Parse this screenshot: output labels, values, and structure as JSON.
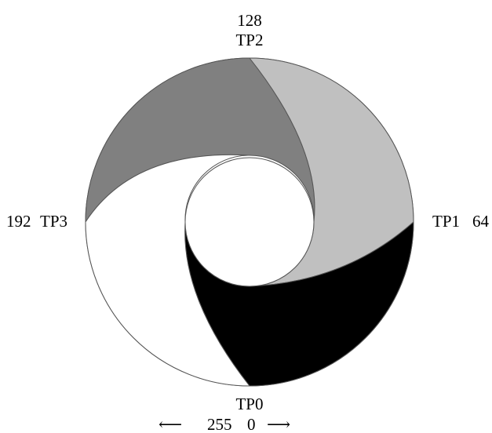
{
  "diagram": {
    "segments": [
      {
        "name": "TP0",
        "value": "0",
        "fill": "#000000"
      },
      {
        "name": "TP1",
        "value": "64",
        "fill": "#c0c0c0"
      },
      {
        "name": "TP2",
        "value": "128",
        "fill": "#808080"
      },
      {
        "name": "TP3",
        "value": "192",
        "fill": "#ffffff"
      }
    ],
    "labels": {
      "top_value": "128",
      "top_name": "TP2",
      "right_name": "TP1",
      "right_value": "64",
      "left_value": "192",
      "left_name": "TP3",
      "bottom_name": "TP0",
      "bottom_left_value": "255",
      "bottom_right_value": "0"
    },
    "arrows": {
      "left": "⟵",
      "right": "⟶"
    }
  }
}
